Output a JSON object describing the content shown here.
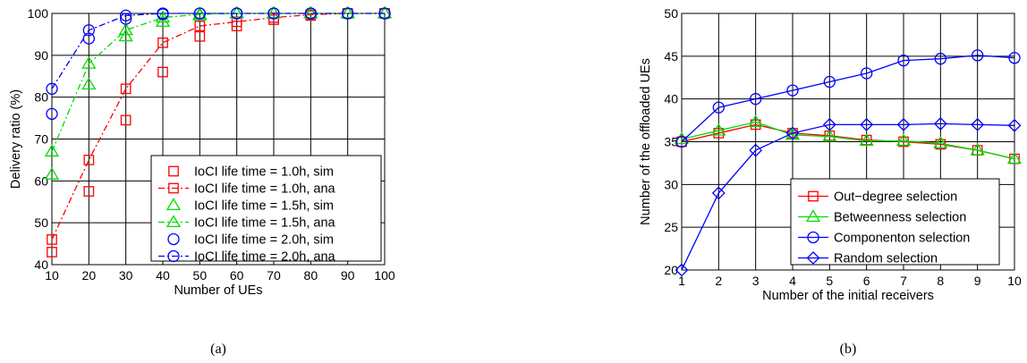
{
  "chart_data": [
    {
      "type": "line",
      "title": "",
      "xlabel": "Number of UEs",
      "ylabel": "Delivery ratio (%)",
      "xlim": [
        10,
        100
      ],
      "ylim": [
        40,
        100
      ],
      "xticks": [
        10,
        20,
        30,
        40,
        50,
        60,
        70,
        80,
        90,
        100
      ],
      "yticks": [
        40,
        50,
        60,
        70,
        80,
        90,
        100
      ],
      "grid": true,
      "legend_position": "bottom-right",
      "caption": "(a)",
      "series": [
        {
          "name": "IoCI life time = 1.0h, sim",
          "color": "#ff0000",
          "marker": "square",
          "line": "none",
          "x": [
            10,
            20,
            30,
            40,
            50,
            60,
            70,
            80,
            90,
            100
          ],
          "y": [
            43,
            57.5,
            74.5,
            86,
            94.5,
            97,
            98.5,
            99.5,
            100,
            100
          ]
        },
        {
          "name": "IoCI life time = 1.0h, ana",
          "color": "#ff0000",
          "marker": "square",
          "line": "dashdot",
          "x": [
            10,
            20,
            30,
            40,
            50,
            60,
            70,
            80,
            90,
            100
          ],
          "y": [
            46,
            65,
            82,
            93,
            97,
            98,
            99,
            99.7,
            100,
            100
          ]
        },
        {
          "name": "IoCI life time = 1.5h, sim",
          "color": "#00dd00",
          "marker": "triangle",
          "line": "none",
          "x": [
            10,
            20,
            30,
            40,
            50,
            60,
            70,
            80,
            90,
            100
          ],
          "y": [
            61.5,
            83,
            94.5,
            98,
            99.5,
            100,
            100,
            100,
            100,
            100
          ]
        },
        {
          "name": "IoCI life time = 1.5h, ana",
          "color": "#00dd00",
          "marker": "triangle",
          "line": "dashdot",
          "x": [
            10,
            20,
            30,
            40,
            50,
            60,
            70,
            80,
            90,
            100
          ],
          "y": [
            67,
            88,
            96,
            99,
            99.8,
            100,
            100,
            100,
            100,
            100
          ]
        },
        {
          "name": "IoCI life time = 2.0h, sim",
          "color": "#0000ff",
          "marker": "circle",
          "line": "none",
          "x": [
            10,
            20,
            30,
            40,
            50,
            60,
            70,
            80,
            90,
            100
          ],
          "y": [
            76,
            94,
            98.7,
            99.8,
            100,
            100,
            100,
            100,
            100,
            100
          ]
        },
        {
          "name": "IoCI life time = 2.0h, ana",
          "color": "#0000ff",
          "marker": "circle",
          "line": "dashdot",
          "x": [
            10,
            20,
            30,
            40,
            50,
            60,
            70,
            80,
            90,
            100
          ],
          "y": [
            82,
            96,
            99.5,
            100,
            100,
            100,
            100,
            100,
            100,
            100
          ]
        }
      ]
    },
    {
      "type": "line",
      "title": "",
      "xlabel": "Number of the initial receivers",
      "ylabel": "Number of the offloaded UEs",
      "xlim": [
        1,
        10
      ],
      "ylim": [
        20,
        50
      ],
      "xticks": [
        1,
        2,
        3,
        4,
        5,
        6,
        7,
        8,
        9,
        10
      ],
      "yticks": [
        20,
        25,
        30,
        35,
        40,
        45,
        50
      ],
      "grid": true,
      "legend_position": "bottom-right",
      "caption": "(b)",
      "series": [
        {
          "name": "Out−degree selection",
          "color": "#ff0000",
          "marker": "square",
          "line": "solid",
          "x": [
            1,
            2,
            3,
            4,
            5,
            6,
            7,
            8,
            9,
            10
          ],
          "y": [
            35,
            36,
            37,
            36,
            35.7,
            35.2,
            35,
            34.7,
            34,
            33
          ]
        },
        {
          "name": "Betweenness selection",
          "color": "#00dd00",
          "marker": "triangle",
          "line": "solid",
          "x": [
            1,
            2,
            3,
            4,
            5,
            6,
            7,
            8,
            9,
            10
          ],
          "y": [
            35.3,
            36.3,
            37.3,
            35.8,
            35.6,
            35.1,
            35.1,
            34.8,
            34,
            33
          ]
        },
        {
          "name": "Componenton selection",
          "color": "#0000ff",
          "marker": "circle",
          "line": "solid",
          "x": [
            1,
            2,
            3,
            4,
            5,
            6,
            7,
            8,
            9,
            10
          ],
          "y": [
            35,
            39,
            40,
            41,
            42,
            43,
            44.5,
            44.7,
            45.1,
            44.8
          ]
        },
        {
          "name": "Random selection",
          "color": "#0000ff",
          "marker": "diamond",
          "line": "solid",
          "x": [
            1,
            2,
            3,
            4,
            5,
            6,
            7,
            8,
            9,
            10
          ],
          "y": [
            20,
            29,
            34,
            36,
            37,
            37,
            37,
            37.1,
            37,
            36.9
          ]
        }
      ]
    }
  ]
}
